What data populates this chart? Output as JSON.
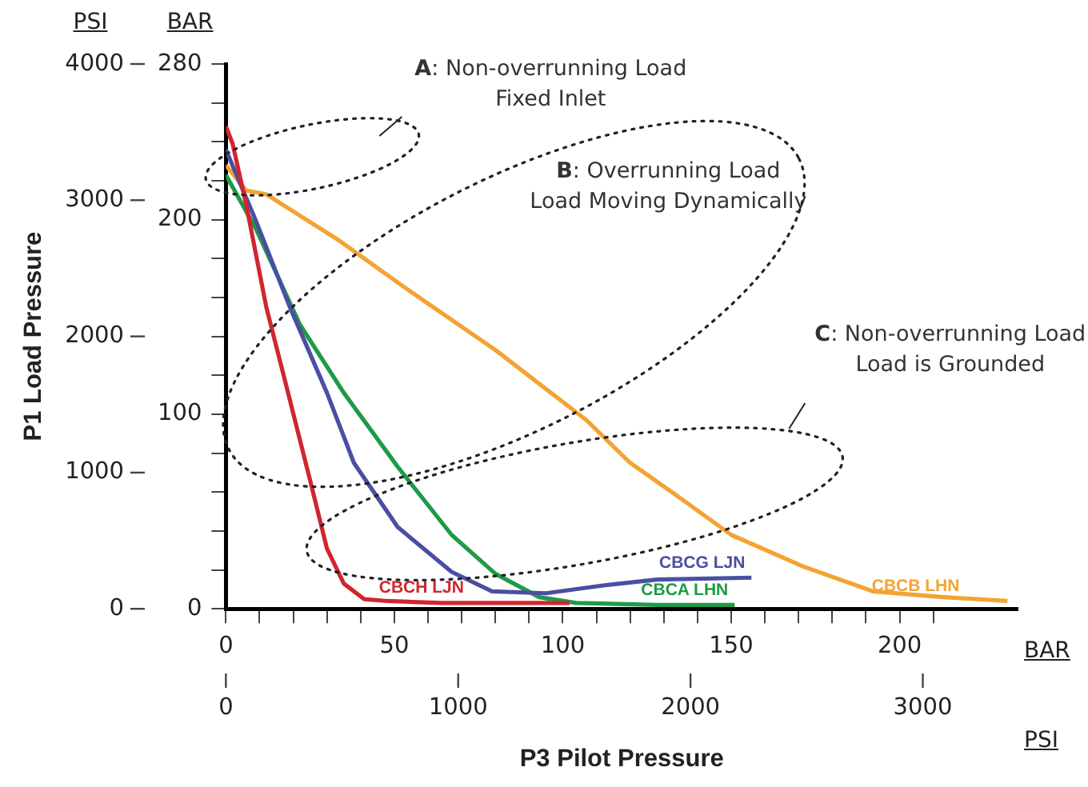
{
  "chart_data": {
    "type": "line",
    "xlabel": "P3 Pilot Pressure",
    "ylabel": "P1 Load Pressure",
    "annotations": [
      "A: Non-overrunning Load\nFixed Inlet",
      "B: Overrunning Load\nLoad Moving Dynamically",
      "C: Non-overrunning Load\nLoad is Grounded",
      "PSI",
      "BAR",
      "BAR",
      "PSI"
    ],
    "xlim": [
      0,
      235
    ],
    "xticks": [
      0,
      {
        "value": 10,
        "label": null
      },
      {
        "value": 20,
        "label": null
      },
      {
        "value": 30,
        "label": null
      },
      {
        "value": 40,
        "label": null
      },
      50,
      {
        "value": 60,
        "label": null
      },
      {
        "value": 70,
        "label": null
      },
      {
        "value": 80,
        "label": null
      },
      {
        "value": 90,
        "label": null
      },
      100,
      {
        "value": 110,
        "label": null
      },
      {
        "value": 120,
        "label": null
      },
      {
        "value": 130,
        "label": null
      },
      {
        "value": 140,
        "label": null
      },
      150,
      {
        "value": 160,
        "label": null
      },
      {
        "value": 170,
        "label": null
      },
      {
        "value": 180,
        "label": null
      },
      {
        "value": 190,
        "label": null
      },
      200,
      {
        "value": 210,
        "label": null
      }
    ],
    "x2lim": [
      0,
      3408
    ],
    "x2ticks": [
      0,
      1000,
      2000,
      3000
    ],
    "y2lim": [
      0,
      280
    ],
    "y2ticks": [
      0,
      {
        "value": 20,
        "label": null
      },
      {
        "value": 40,
        "label": null
      },
      {
        "value": 60,
        "label": null
      },
      {
        "value": 80,
        "label": null
      },
      100,
      {
        "value": 120,
        "label": null
      },
      {
        "value": 140,
        "label": null
      },
      {
        "value": 160,
        "label": null
      },
      {
        "value": 180,
        "label": null
      },
      200,
      {
        "value": 220,
        "label": null
      },
      {
        "value": 240,
        "label": null
      },
      {
        "value": 260,
        "label": null
      },
      280
    ],
    "ylim": [
      0,
      4000
    ],
    "yticks": [
      0,
      1000,
      2000,
      3000,
      4000
    ],
    "grid": false,
    "legend": false,
    "marker": "none",
    "line_style": "solid",
    "series": [
      {
        "name": "CBCH LJN",
        "color": "#d0262f",
        "axis": "y2",
        "x": [
          0,
          2,
          6,
          12,
          17,
          25,
          30,
          35,
          41,
          48,
          64,
          102
        ],
        "values": [
          248,
          239,
          208,
          155,
          121,
          66,
          31,
          13,
          5,
          4,
          3,
          3
        ]
      },
      {
        "name": "CBCG LJN",
        "color": "#4a4fa3",
        "axis": "y2",
        "x": [
          0,
          9,
          19,
          30,
          38,
          51,
          67,
          79,
          95,
          112,
          128,
          156
        ],
        "values": [
          236,
          199,
          155,
          111,
          75,
          42,
          19,
          9,
          8,
          12,
          15,
          16
        ]
      },
      {
        "name": "CBCA LHN",
        "color": "#1f9a48",
        "axis": "y2",
        "x": [
          0,
          9,
          22,
          35,
          51,
          67,
          80,
          93,
          104,
          128,
          151
        ],
        "values": [
          223,
          195,
          146,
          111,
          73,
          38,
          18,
          6,
          3,
          2,
          2
        ]
      },
      {
        "name": "CBCB LHN",
        "color": "#f4a332",
        "axis": "y2",
        "x": [
          0,
          6,
          12,
          33,
          54,
          80,
          107,
          120,
          134,
          150,
          171,
          192,
          213,
          232
        ],
        "values": [
          228,
          215,
          213,
          190,
          164,
          133,
          97,
          75,
          58,
          38,
          22,
          9,
          6,
          4
        ]
      }
    ]
  }
}
